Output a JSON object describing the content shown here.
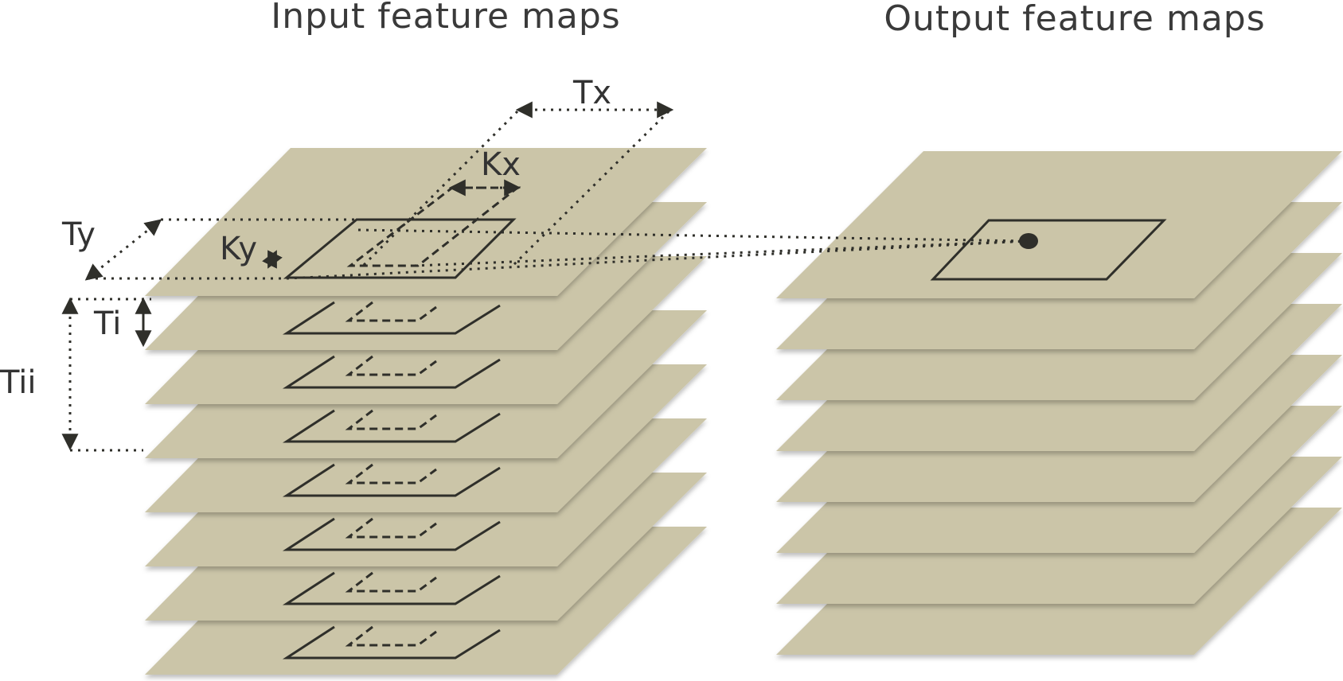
{
  "titles": {
    "input": "Input feature maps",
    "output": "Output feature maps"
  },
  "labels": {
    "tx": "Tx",
    "ty": "Ty",
    "kx": "Kx",
    "ky": "Ky",
    "ti": "Ti",
    "tii": "Tii"
  },
  "input_stack": {
    "layers": 8
  },
  "output_stack": {
    "layers": 8
  },
  "colors": {
    "plane": "#cbc5a8",
    "shadow": "#b9b39a",
    "line": "#2f2f2a",
    "text": "#3a3a3a"
  }
}
